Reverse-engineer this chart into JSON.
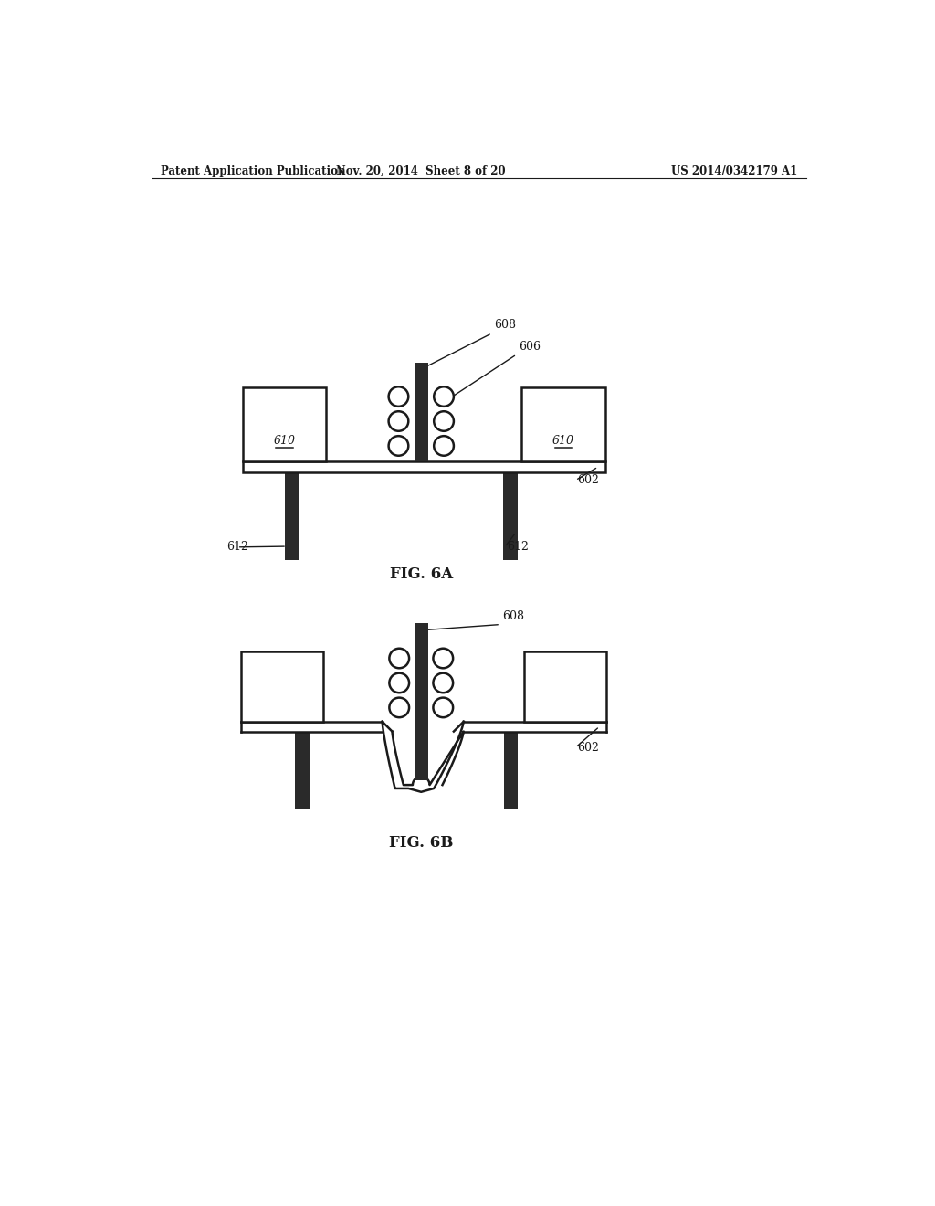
{
  "background_color": "#ffffff",
  "header_left": "Patent Application Publication",
  "header_center": "Nov. 20, 2014  Sheet 8 of 20",
  "header_right": "US 2014/0342179 A1",
  "fig6a_label": "FIG. 6A",
  "fig6b_label": "FIG. 6B",
  "label_602": "602",
  "label_606": "606",
  "label_608": "608",
  "label_610": "610",
  "label_612": "612",
  "line_color": "#1a1a1a",
  "fill_dark": "#2a2a2a",
  "fill_light": "#f5f5f5"
}
